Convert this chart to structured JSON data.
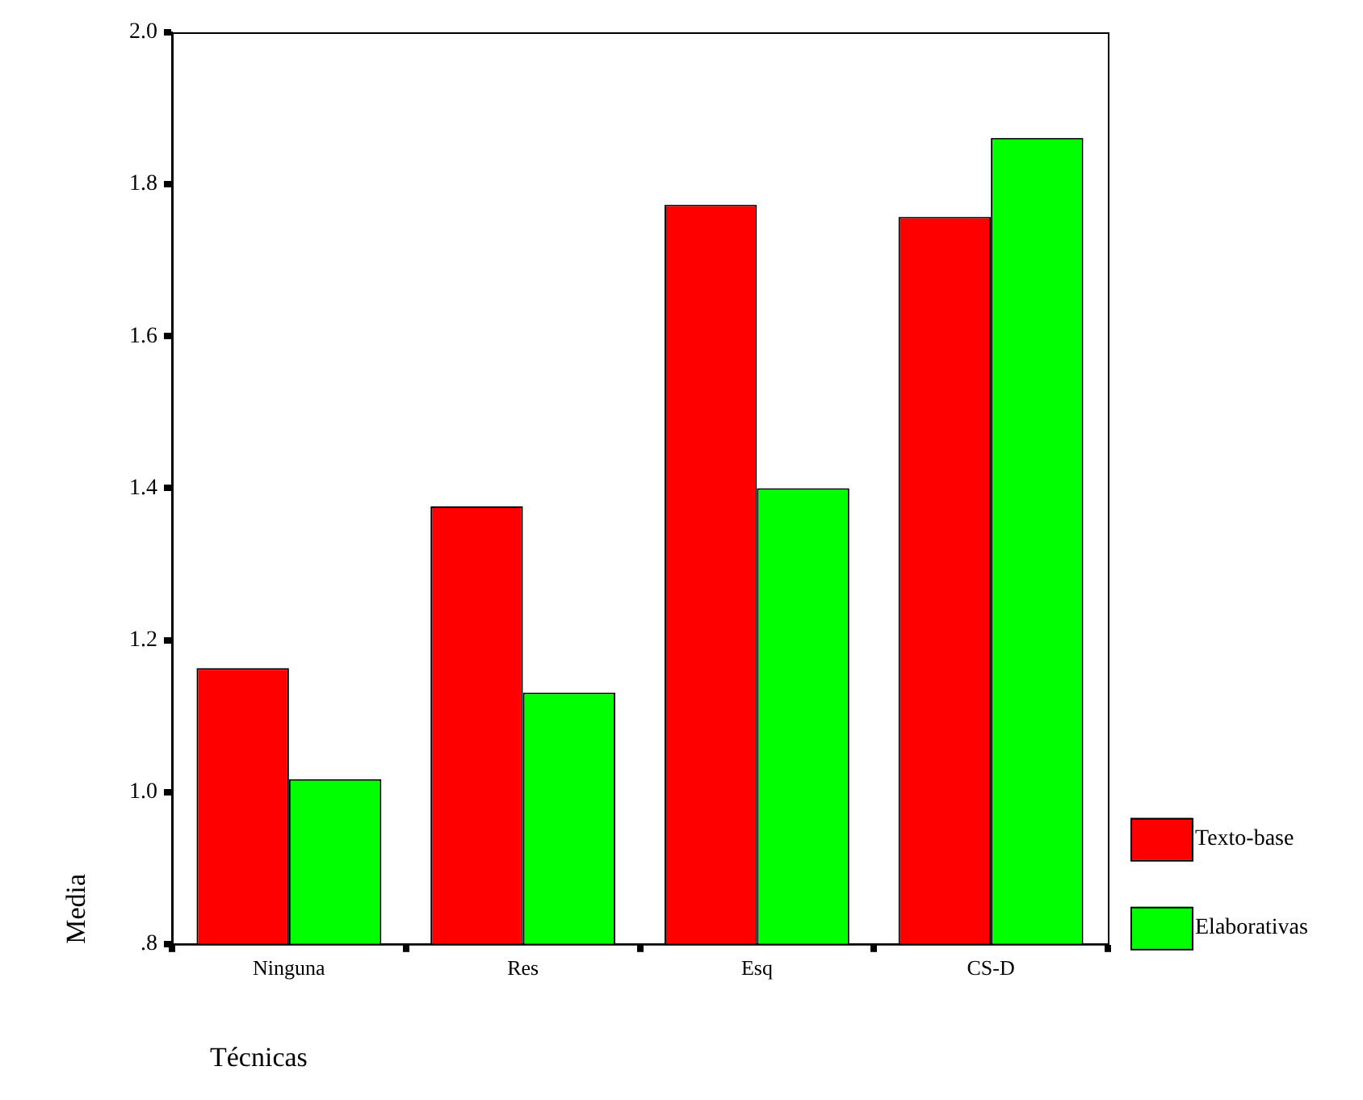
{
  "chart_data": {
    "type": "bar",
    "xlabel": "Técnicas",
    "ylabel": "Media",
    "categories": [
      "Ninguna",
      "Res",
      "Esq",
      "CS-D"
    ],
    "series": [
      {
        "name": "Texto-base",
        "color": "#ff0000",
        "values": [
          1.163,
          1.376,
          1.773,
          1.757
        ]
      },
      {
        "name": "Elaborativas",
        "color": "#00ff00",
        "values": [
          1.017,
          1.131,
          1.4,
          1.861
        ]
      }
    ],
    "ylim": [
      0.8,
      2.0
    ],
    "yticks": [
      {
        "value": 0.8,
        "label": ".8"
      },
      {
        "value": 1.0,
        "label": "1.0"
      },
      {
        "value": 1.2,
        "label": "1.2"
      },
      {
        "value": 1.4,
        "label": "1.4"
      },
      {
        "value": 1.6,
        "label": "1.6"
      },
      {
        "value": 1.8,
        "label": "1.8"
      },
      {
        "value": 2.0,
        "label": "2.0"
      }
    ],
    "grid": false,
    "legend": "right"
  }
}
